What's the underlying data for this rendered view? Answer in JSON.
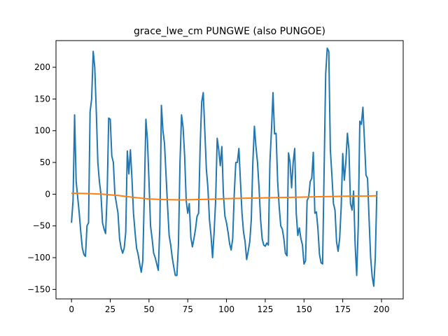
{
  "chart_data": {
    "type": "line",
    "title": "grace_lwe_cm PUNGWE  (also PUNGOE)",
    "xlabel": "",
    "ylabel": "",
    "xlim": [
      -10,
      214
    ],
    "ylim": [
      -165,
      242
    ],
    "xticks": [
      0,
      25,
      50,
      75,
      100,
      125,
      150,
      175,
      200
    ],
    "yticks": [
      -150,
      -100,
      -50,
      0,
      50,
      100,
      150,
      200
    ],
    "grid": false,
    "series": [
      {
        "color": "#1f77b4",
        "points": [
          [
            0,
            -45
          ],
          [
            1,
            -10
          ],
          [
            2,
            125
          ],
          [
            3,
            20
          ],
          [
            4,
            -5
          ],
          [
            5,
            -30
          ],
          [
            6,
            -60
          ],
          [
            7,
            -85
          ],
          [
            8,
            -95
          ],
          [
            9,
            -98
          ],
          [
            10,
            -50
          ],
          [
            11,
            -45
          ],
          [
            12,
            130
          ],
          [
            13,
            150
          ],
          [
            14,
            225
          ],
          [
            15,
            200
          ],
          [
            16,
            130
          ],
          [
            17,
            50
          ],
          [
            18,
            20
          ],
          [
            19,
            0
          ],
          [
            20,
            -45
          ],
          [
            21,
            -55
          ],
          [
            22,
            -62
          ],
          [
            23,
            0
          ],
          [
            24,
            120
          ],
          [
            25,
            118
          ],
          [
            26,
            60
          ],
          [
            27,
            50
          ],
          [
            28,
            0
          ],
          [
            29,
            -15
          ],
          [
            30,
            -30
          ],
          [
            31,
            -70
          ],
          [
            32,
            -85
          ],
          [
            33,
            -93
          ],
          [
            34,
            -85
          ],
          [
            35,
            -60
          ],
          [
            36,
            68
          ],
          [
            37,
            32
          ],
          [
            38,
            70
          ],
          [
            39,
            25
          ],
          [
            40,
            -30
          ],
          [
            41,
            -60
          ],
          [
            42,
            -85
          ],
          [
            43,
            -95
          ],
          [
            44,
            -110
          ],
          [
            45,
            -123
          ],
          [
            46,
            -105
          ],
          [
            47,
            0
          ],
          [
            48,
            118
          ],
          [
            49,
            85
          ],
          [
            50,
            20
          ],
          [
            51,
            -50
          ],
          [
            52,
            -70
          ],
          [
            53,
            -93
          ],
          [
            54,
            -100
          ],
          [
            55,
            -110
          ],
          [
            56,
            -120
          ],
          [
            57,
            -50
          ],
          [
            58,
            140
          ],
          [
            59,
            100
          ],
          [
            60,
            80
          ],
          [
            61,
            30
          ],
          [
            62,
            -20
          ],
          [
            63,
            -65
          ],
          [
            64,
            -80
          ],
          [
            65,
            -100
          ],
          [
            66,
            -115
          ],
          [
            67,
            -128
          ],
          [
            68,
            -128
          ],
          [
            69,
            -80
          ],
          [
            70,
            50
          ],
          [
            71,
            125
          ],
          [
            72,
            105
          ],
          [
            73,
            60
          ],
          [
            74,
            -10
          ],
          [
            75,
            -30
          ],
          [
            76,
            -15
          ],
          [
            77,
            -68
          ],
          [
            78,
            -83
          ],
          [
            79,
            -70
          ],
          [
            80,
            -55
          ],
          [
            81,
            -35
          ],
          [
            82,
            -30
          ],
          [
            83,
            75
          ],
          [
            84,
            145
          ],
          [
            85,
            160
          ],
          [
            86,
            100
          ],
          [
            87,
            40
          ],
          [
            88,
            10
          ],
          [
            89,
            -40
          ],
          [
            90,
            -65
          ],
          [
            91,
            -100
          ],
          [
            92,
            -60
          ],
          [
            93,
            -10
          ],
          [
            94,
            88
          ],
          [
            95,
            70
          ],
          [
            96,
            45
          ],
          [
            97,
            75
          ],
          [
            98,
            0
          ],
          [
            99,
            -35
          ],
          [
            100,
            -45
          ],
          [
            101,
            -60
          ],
          [
            102,
            -78
          ],
          [
            103,
            -88
          ],
          [
            104,
            -70
          ],
          [
            105,
            0
          ],
          [
            106,
            50
          ],
          [
            107,
            50
          ],
          [
            108,
            72
          ],
          [
            109,
            20
          ],
          [
            110,
            -30
          ],
          [
            111,
            -60
          ],
          [
            112,
            -75
          ],
          [
            113,
            -103
          ],
          [
            114,
            -90
          ],
          [
            115,
            -75
          ],
          [
            116,
            -40
          ],
          [
            117,
            50
          ],
          [
            118,
            107
          ],
          [
            119,
            75
          ],
          [
            120,
            50
          ],
          [
            121,
            10
          ],
          [
            122,
            -40
          ],
          [
            123,
            -70
          ],
          [
            124,
            -80
          ],
          [
            125,
            -82
          ],
          [
            126,
            -77
          ],
          [
            127,
            -80
          ],
          [
            128,
            50
          ],
          [
            129,
            100
          ],
          [
            130,
            160
          ],
          [
            131,
            95
          ],
          [
            132,
            96
          ],
          [
            133,
            20
          ],
          [
            134,
            -20
          ],
          [
            135,
            -50
          ],
          [
            136,
            -55
          ],
          [
            137,
            -70
          ],
          [
            138,
            -93
          ],
          [
            139,
            -97
          ],
          [
            140,
            65
          ],
          [
            141,
            50
          ],
          [
            142,
            10
          ],
          [
            143,
            50
          ],
          [
            144,
            72
          ],
          [
            145,
            -30
          ],
          [
            146,
            -65
          ],
          [
            147,
            -53
          ],
          [
            148,
            -70
          ],
          [
            149,
            -80
          ],
          [
            150,
            -110
          ],
          [
            151,
            -105
          ],
          [
            152,
            -10
          ],
          [
            153,
            -5
          ],
          [
            154,
            20
          ],
          [
            155,
            25
          ],
          [
            156,
            66
          ],
          [
            157,
            -30
          ],
          [
            158,
            -28
          ],
          [
            159,
            -55
          ],
          [
            160,
            -95
          ],
          [
            161,
            -108
          ],
          [
            162,
            -110
          ],
          [
            163,
            40
          ],
          [
            164,
            190
          ],
          [
            165,
            230
          ],
          [
            166,
            225
          ],
          [
            167,
            70
          ],
          [
            168,
            30
          ],
          [
            169,
            -15
          ],
          [
            170,
            -25
          ],
          [
            171,
            -75
          ],
          [
            172,
            -90
          ],
          [
            173,
            -70
          ],
          [
            174,
            -20
          ],
          [
            175,
            64
          ],
          [
            176,
            22
          ],
          [
            177,
            50
          ],
          [
            178,
            96
          ],
          [
            179,
            70
          ],
          [
            180,
            -15
          ],
          [
            181,
            -25
          ],
          [
            182,
            5
          ],
          [
            183,
            -80
          ],
          [
            184,
            -128
          ],
          [
            185,
            -50
          ],
          [
            186,
            115
          ],
          [
            187,
            110
          ],
          [
            188,
            137
          ],
          [
            189,
            85
          ],
          [
            190,
            30
          ],
          [
            191,
            25
          ],
          [
            192,
            -40
          ],
          [
            193,
            -100
          ],
          [
            194,
            -130
          ],
          [
            195,
            -145
          ],
          [
            196,
            -100
          ],
          [
            197,
            5
          ]
        ]
      },
      {
        "color": "#ff7f0e",
        "points": [
          [
            0,
            1.5
          ],
          [
            10,
            1
          ],
          [
            20,
            0
          ],
          [
            30,
            -2
          ],
          [
            40,
            -5
          ],
          [
            50,
            -7.5
          ],
          [
            60,
            -8.5
          ],
          [
            70,
            -9
          ],
          [
            80,
            -8.5
          ],
          [
            90,
            -8
          ],
          [
            100,
            -7
          ],
          [
            110,
            -6.5
          ],
          [
            120,
            -6
          ],
          [
            130,
            -5.5
          ],
          [
            140,
            -5
          ],
          [
            150,
            -4.5
          ],
          [
            160,
            -4
          ],
          [
            170,
            -3.5
          ],
          [
            180,
            -3
          ],
          [
            190,
            -3
          ],
          [
            197,
            -2.5
          ]
        ]
      }
    ]
  }
}
